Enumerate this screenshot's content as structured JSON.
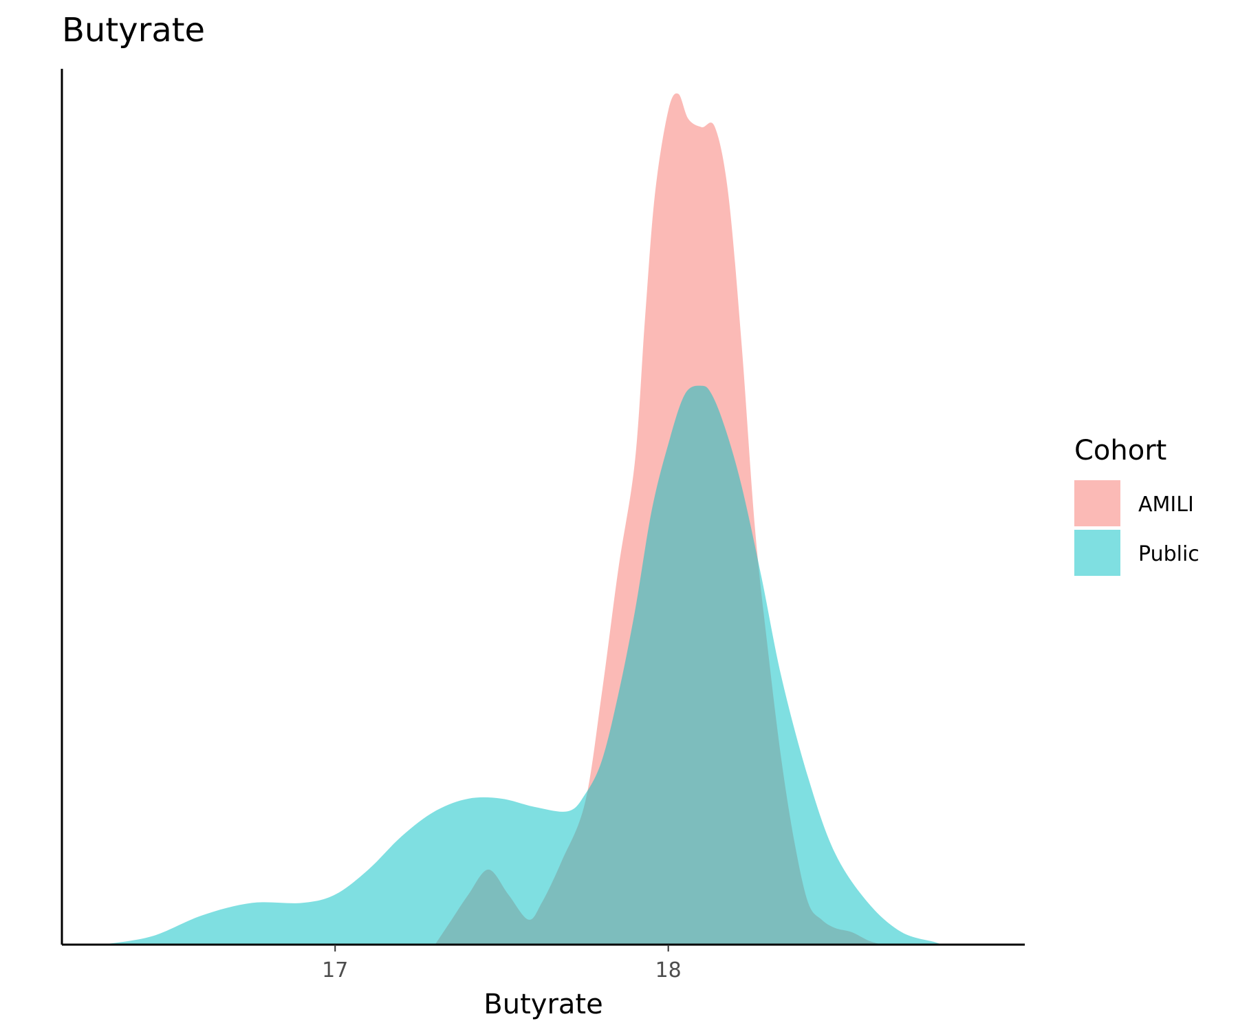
{
  "chart_data": {
    "type": "area",
    "subtype": "density",
    "title": "Butyrate",
    "xlabel": "Butyrate",
    "ylabel": "",
    "x_ticks": [
      17,
      18
    ],
    "xlim": [
      16.18,
      19.07
    ],
    "ylim": [
      0,
      1.05
    ],
    "grid": false,
    "legend_title": "Cohort",
    "legend_position": "right",
    "series": [
      {
        "name": "AMILI",
        "color": "#F8766D",
        "opacity": 0.5,
        "x": [
          17.3,
          17.35,
          17.4,
          17.46,
          17.52,
          17.58,
          17.62,
          17.68,
          17.75,
          17.8,
          17.85,
          17.9,
          17.93,
          17.96,
          18.0,
          18.03,
          18.06,
          18.1,
          18.14,
          18.18,
          18.22,
          18.26,
          18.3,
          18.34,
          18.38,
          18.42,
          18.46,
          18.5,
          18.55,
          18.6,
          18.64
        ],
        "y": [
          0.0,
          0.03,
          0.06,
          0.09,
          0.06,
          0.03,
          0.05,
          0.1,
          0.17,
          0.3,
          0.45,
          0.58,
          0.75,
          0.9,
          1.0,
          1.02,
          0.99,
          0.98,
          0.98,
          0.9,
          0.72,
          0.5,
          0.35,
          0.22,
          0.12,
          0.05,
          0.03,
          0.02,
          0.015,
          0.005,
          0.0
        ]
      },
      {
        "name": "Public",
        "color": "#00BFC4",
        "opacity": 0.5,
        "x": [
          16.3,
          16.45,
          16.6,
          16.75,
          16.9,
          17.0,
          17.1,
          17.2,
          17.3,
          17.4,
          17.5,
          17.6,
          17.7,
          17.75,
          17.8,
          17.85,
          17.9,
          17.95,
          18.0,
          18.05,
          18.1,
          18.13,
          18.17,
          18.22,
          18.28,
          18.34,
          18.42,
          18.5,
          18.6,
          18.7,
          18.8,
          18.82
        ],
        "y": [
          0.0,
          0.01,
          0.035,
          0.05,
          0.05,
          0.06,
          0.09,
          0.13,
          0.16,
          0.175,
          0.175,
          0.165,
          0.16,
          0.18,
          0.22,
          0.3,
          0.4,
          0.52,
          0.6,
          0.66,
          0.67,
          0.66,
          0.62,
          0.55,
          0.44,
          0.32,
          0.2,
          0.11,
          0.05,
          0.015,
          0.003,
          0.0
        ]
      }
    ]
  }
}
